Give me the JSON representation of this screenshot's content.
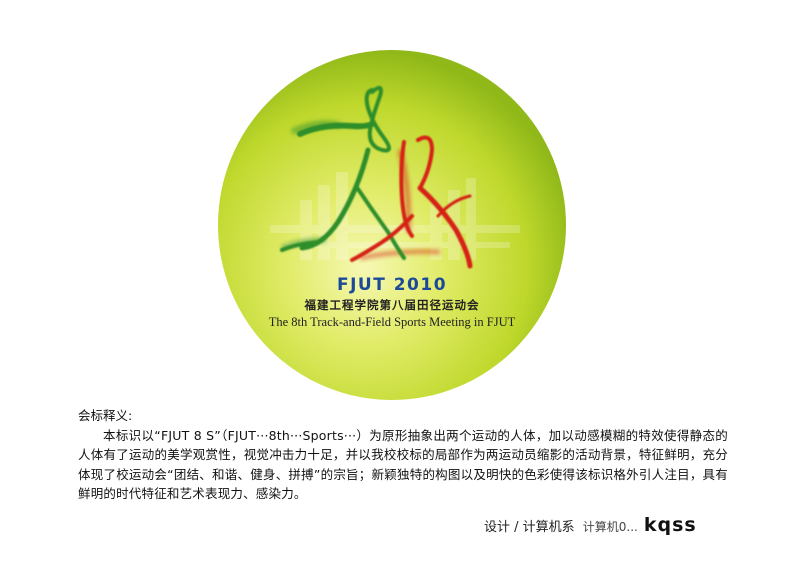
{
  "logo": {
    "motif_text": "FJUT 8 S",
    "year_line": "FJUT 2010",
    "chinese_line": "福建工程学院第八届田径运动会",
    "english_line": "The 8th Track-and-Field Sports Meeting in FJUT",
    "colors": {
      "disc_light": "#f4f6a0",
      "disc_mid": "#c4dc2c",
      "disc_edge": "#8fb818",
      "green_figure": "#2e8e2a",
      "red_figure": "#d62418",
      "blue_text": "#1c4a9a",
      "dark_text": "#222222"
    }
  },
  "description": {
    "title": "会标释义:",
    "paragraph": "本标识以“FJUT 8 S”（FJUT···8th···Sports···）为原形抽象出两个运动的人体，加以动感模糊的特效使得静态的人体有了运动的美学观赏性，视觉冲击力十足，并以我校校标的局部作为两运动员缩影的活动背景，特征鲜明，充分体现了校运动会“团结、和谐、健身、拼搏”的宗旨；新颖独特的构图以及明快的色彩使得该标识格外引人注目，具有鲜明的时代特征和艺术表现力、感染力。"
  },
  "credit": {
    "label": "设计 / 计算机系",
    "signature_prefix": "计算机0...",
    "signature": "kqss"
  }
}
